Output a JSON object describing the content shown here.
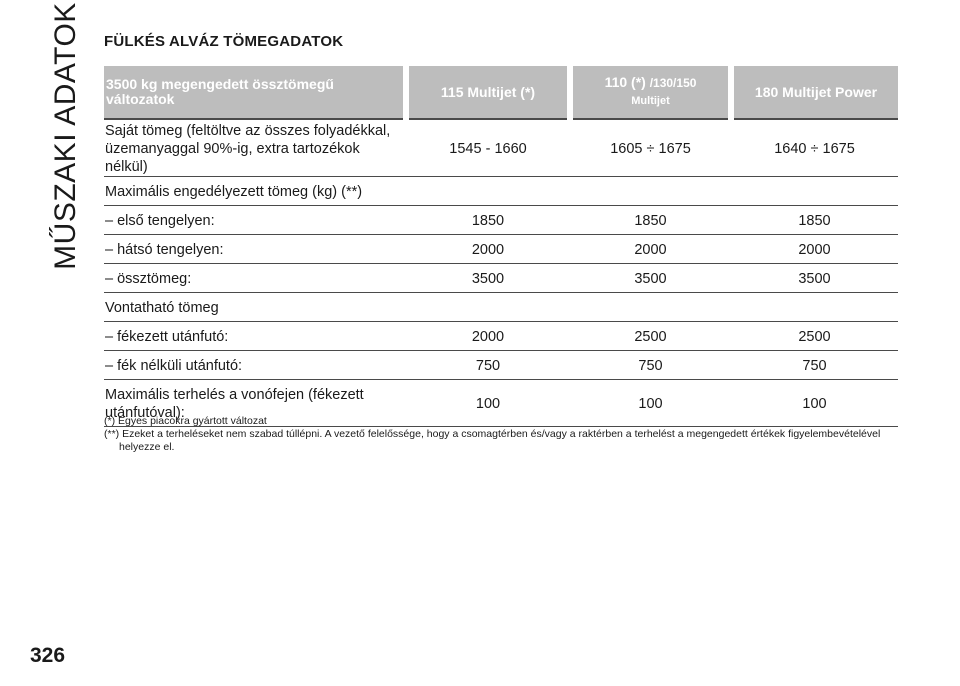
{
  "side_title": "MŰSZAKI ADATOK",
  "page_number": "326",
  "section_title": "FÜLKÉS ALVÁZ TÖMEGADATOK",
  "table": {
    "header": {
      "col0": "3500 kg megengedett össztömegű változatok",
      "col1": "115 Multijet (*)",
      "col2_main": "110 (*)",
      "col2_small": "/130/150",
      "col2_line2": "Multijet",
      "col3": "180 Multijet Power"
    },
    "rows": [
      {
        "label": "Saját tömeg (feltöltve az összes folyadékkal, üzemanyaggal 90%-ig, extra tartozékok nélkül)",
        "v1": "1545 - 1660",
        "v2": "1605 ÷ 1675",
        "v3": "1640 ÷ 1675"
      },
      {
        "label": "Maximális engedélyezett tömeg (kg) (**)",
        "v1": "",
        "v2": "",
        "v3": ""
      },
      {
        "label": "– első tengelyen:",
        "v1": "1850",
        "v2": "1850",
        "v3": "1850"
      },
      {
        "label": "– hátsó tengelyen:",
        "v1": "2000",
        "v2": "2000",
        "v3": "2000"
      },
      {
        "label": "– össztömeg:",
        "v1": "3500",
        "v2": "3500",
        "v3": "3500"
      },
      {
        "label": "Vontatható tömeg",
        "v1": "",
        "v2": "",
        "v3": ""
      },
      {
        "label": "– fékezett utánfutó:",
        "v1": "2000",
        "v2": "2500",
        "v3": "2500"
      },
      {
        "label": "– fék nélküli utánfutó:",
        "v1": "750",
        "v2": "750",
        "v3": "750"
      },
      {
        "label": "Maximális terhelés a vonófejen (fékezett utánfutóval):",
        "v1": "100",
        "v2": "100",
        "v3": "100"
      }
    ]
  },
  "notes": {
    "note1": "(*) Egyes piacokra gyártott változat",
    "note2": "(**) Ezeket a terheléseket nem szabad túllépni. A vezető felelőssége, hogy a csomagtérben és/vagy a raktérben a terhelést a megengedett értékek figyelembevételével helyezze el."
  }
}
